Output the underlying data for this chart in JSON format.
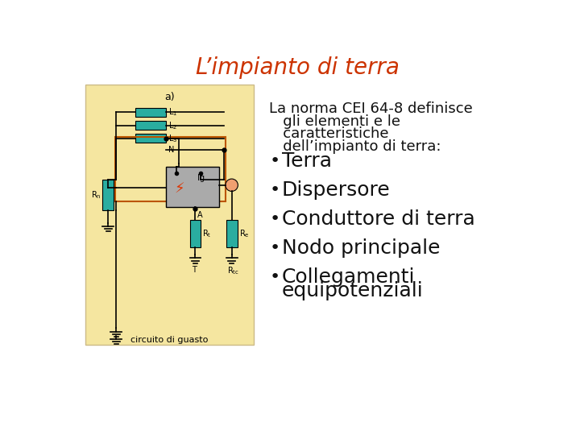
{
  "title": "L’impianto di terra",
  "title_color": "#CC3300",
  "title_fontsize": 20,
  "background_color": "#ffffff",
  "panel_bg_color": "#F5E6A0",
  "panel_border_color": "#888844",
  "intro_line1": "La norma CEI 64-8 definisce",
  "intro_line2": "   gli elementi e le",
  "intro_line3": "   caratteristiche",
  "intro_line4": "   dell’impianto di terra:",
  "bullet_items": [
    "Terra",
    "Dispersore",
    "Conduttore di terra",
    "Nodo principale",
    "Collegamenti\nequipotenziali"
  ],
  "bullet_fontsize": 18,
  "intro_fontsize": 13,
  "circuit_label": "circuito di guasto",
  "label_a": "a)",
  "teal_color": "#2AADA0",
  "gray_box_color": "#AAAAAA",
  "rn_color": "#2AADA0",
  "re_color": "#2AADA0",
  "fault_box_color": "#BB5500",
  "orange_circle": "#F0A070",
  "bolt_color": "#DD3300"
}
